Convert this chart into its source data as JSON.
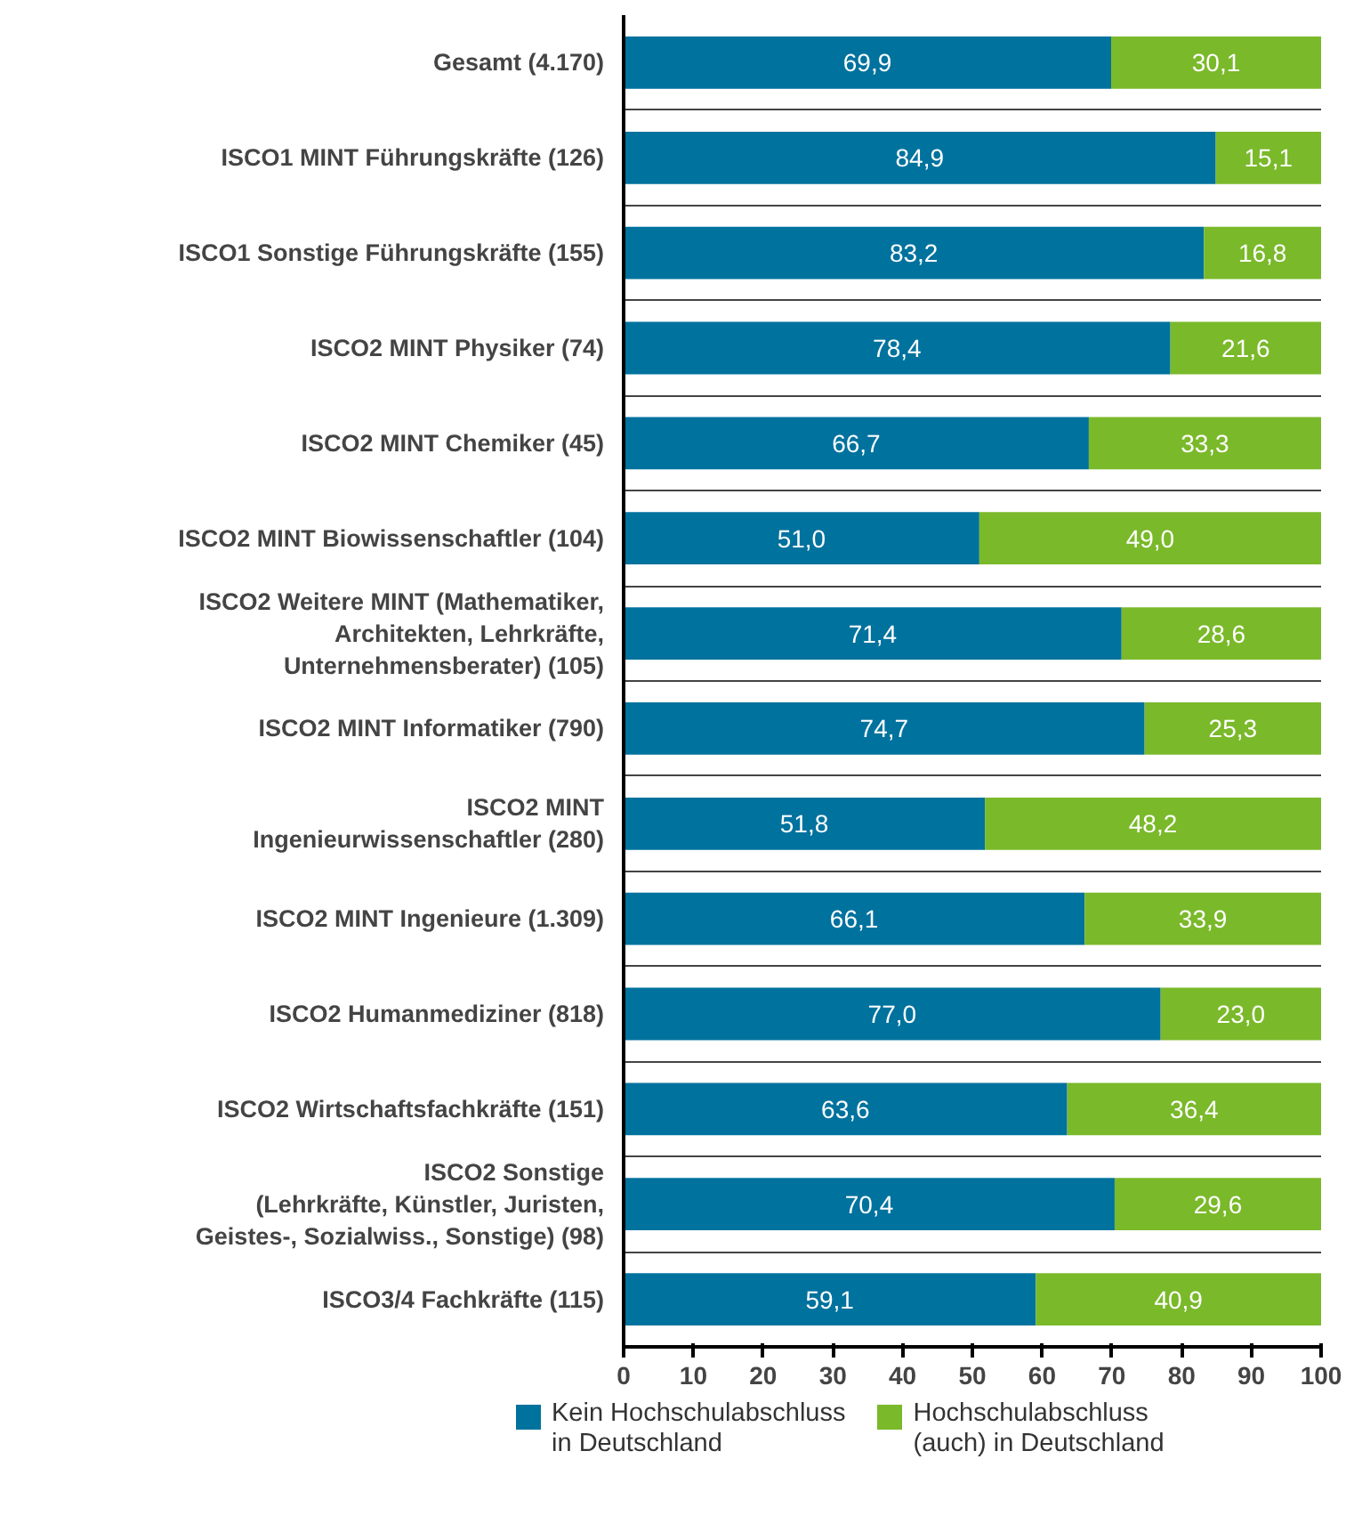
{
  "chart_data": {
    "type": "bar",
    "orientation": "horizontal",
    "stacked": true,
    "categories": [
      "Gesamt (4.170)",
      "ISCO1 MINT Führungskräfte (126)",
      "ISCO1 Sonstige Führungskräfte (155)",
      "ISCO2 MINT Physiker (74)",
      "ISCO2 MINT Chemiker (45)",
      "ISCO2 MINT Biowissenschaftler (104)",
      "ISCO2 Weitere MINT (Mathematiker,\nArchitekten, Lehrkräfte,\nUnternehmensberater) (105)",
      "ISCO2 MINT Informatiker (790)",
      "ISCO2 MINT\nIngenieurwissenschaftler (280)",
      "ISCO2 MINT Ingenieure (1.309)",
      "ISCO2 Humanmediziner (818)",
      "ISCO2 Wirtschaftsfachkräfte (151)",
      "ISCO2 Sonstige\n(Lehrkräfte, Künstler, Juristen,\nGeistes-, Sozialwiss., Sonstige) (98)",
      "ISCO3/4 Fachkräfte (115)"
    ],
    "series": [
      {
        "name": "Kein Hochschulabschluss\nin Deutschland",
        "color": "#00729e",
        "values": [
          69.9,
          84.9,
          83.2,
          78.4,
          66.7,
          51.0,
          71.4,
          74.7,
          51.8,
          66.1,
          77.0,
          63.6,
          70.4,
          59.1
        ],
        "value_labels": [
          "69,9",
          "84,9",
          "83,2",
          "78,4",
          "66,7",
          "51,0",
          "71,4",
          "74,7",
          "51,8",
          "66,1",
          "77,0",
          "63,6",
          "70,4",
          "59,1"
        ]
      },
      {
        "name": "Hochschulabschluss\n(auch) in Deutschland",
        "color": "#7ab92a",
        "values": [
          30.1,
          15.1,
          16.8,
          21.6,
          33.3,
          49.0,
          28.6,
          25.3,
          48.2,
          33.9,
          23.0,
          36.4,
          29.6,
          40.9
        ],
        "value_labels": [
          "30,1",
          "15,1",
          "16,8",
          "21,6",
          "33,3",
          "49,0",
          "28,6",
          "25,3",
          "48,2",
          "33,9",
          "23,0",
          "36,4",
          "29,6",
          "40,9"
        ]
      }
    ],
    "xlim": [
      0,
      100
    ],
    "xticks": [
      0,
      10,
      20,
      30,
      40,
      50,
      60,
      70,
      80,
      90,
      100
    ],
    "grid": "y",
    "legend": "bottom"
  }
}
